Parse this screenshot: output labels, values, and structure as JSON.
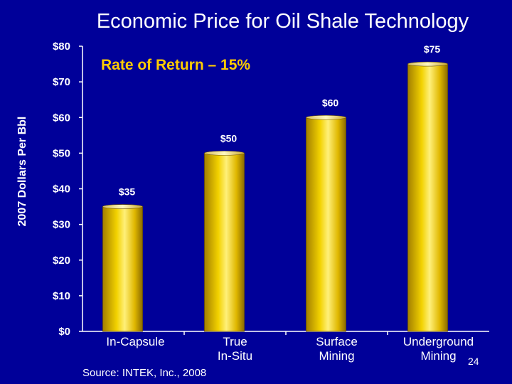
{
  "slide": {
    "title": "Economic Price for Oil Shale Technology",
    "subtitle": "Rate of Return – 15%",
    "source": "Source: INTEK, Inc., 2008",
    "page_number": "24"
  },
  "colors": {
    "background": "#000099",
    "bar": "#e6c200",
    "subtitle": "#ffcc00",
    "text": "#ffffff"
  },
  "chart_data": {
    "type": "bar",
    "title": "Economic Price for Oil Shale Technology",
    "subtitle": "Rate of Return – 15%",
    "ylabel": "2007 Dollars Per Bbl",
    "xlabel": "",
    "categories": [
      "In-Capsule",
      "True\nIn-Situ",
      "Surface\nMining",
      "Underground\nMining"
    ],
    "values": [
      35,
      50,
      60,
      75
    ],
    "data_labels": [
      "$35",
      "$50",
      "$60",
      "$75"
    ],
    "ylim": [
      0,
      80
    ],
    "yticks": [
      0,
      10,
      20,
      30,
      40,
      50,
      60,
      70,
      80
    ],
    "ytick_labels": [
      "$0",
      "$10",
      "$20",
      "$30",
      "$40",
      "$50",
      "$60",
      "$70",
      "$80"
    ],
    "grid": false,
    "legend": "none"
  }
}
